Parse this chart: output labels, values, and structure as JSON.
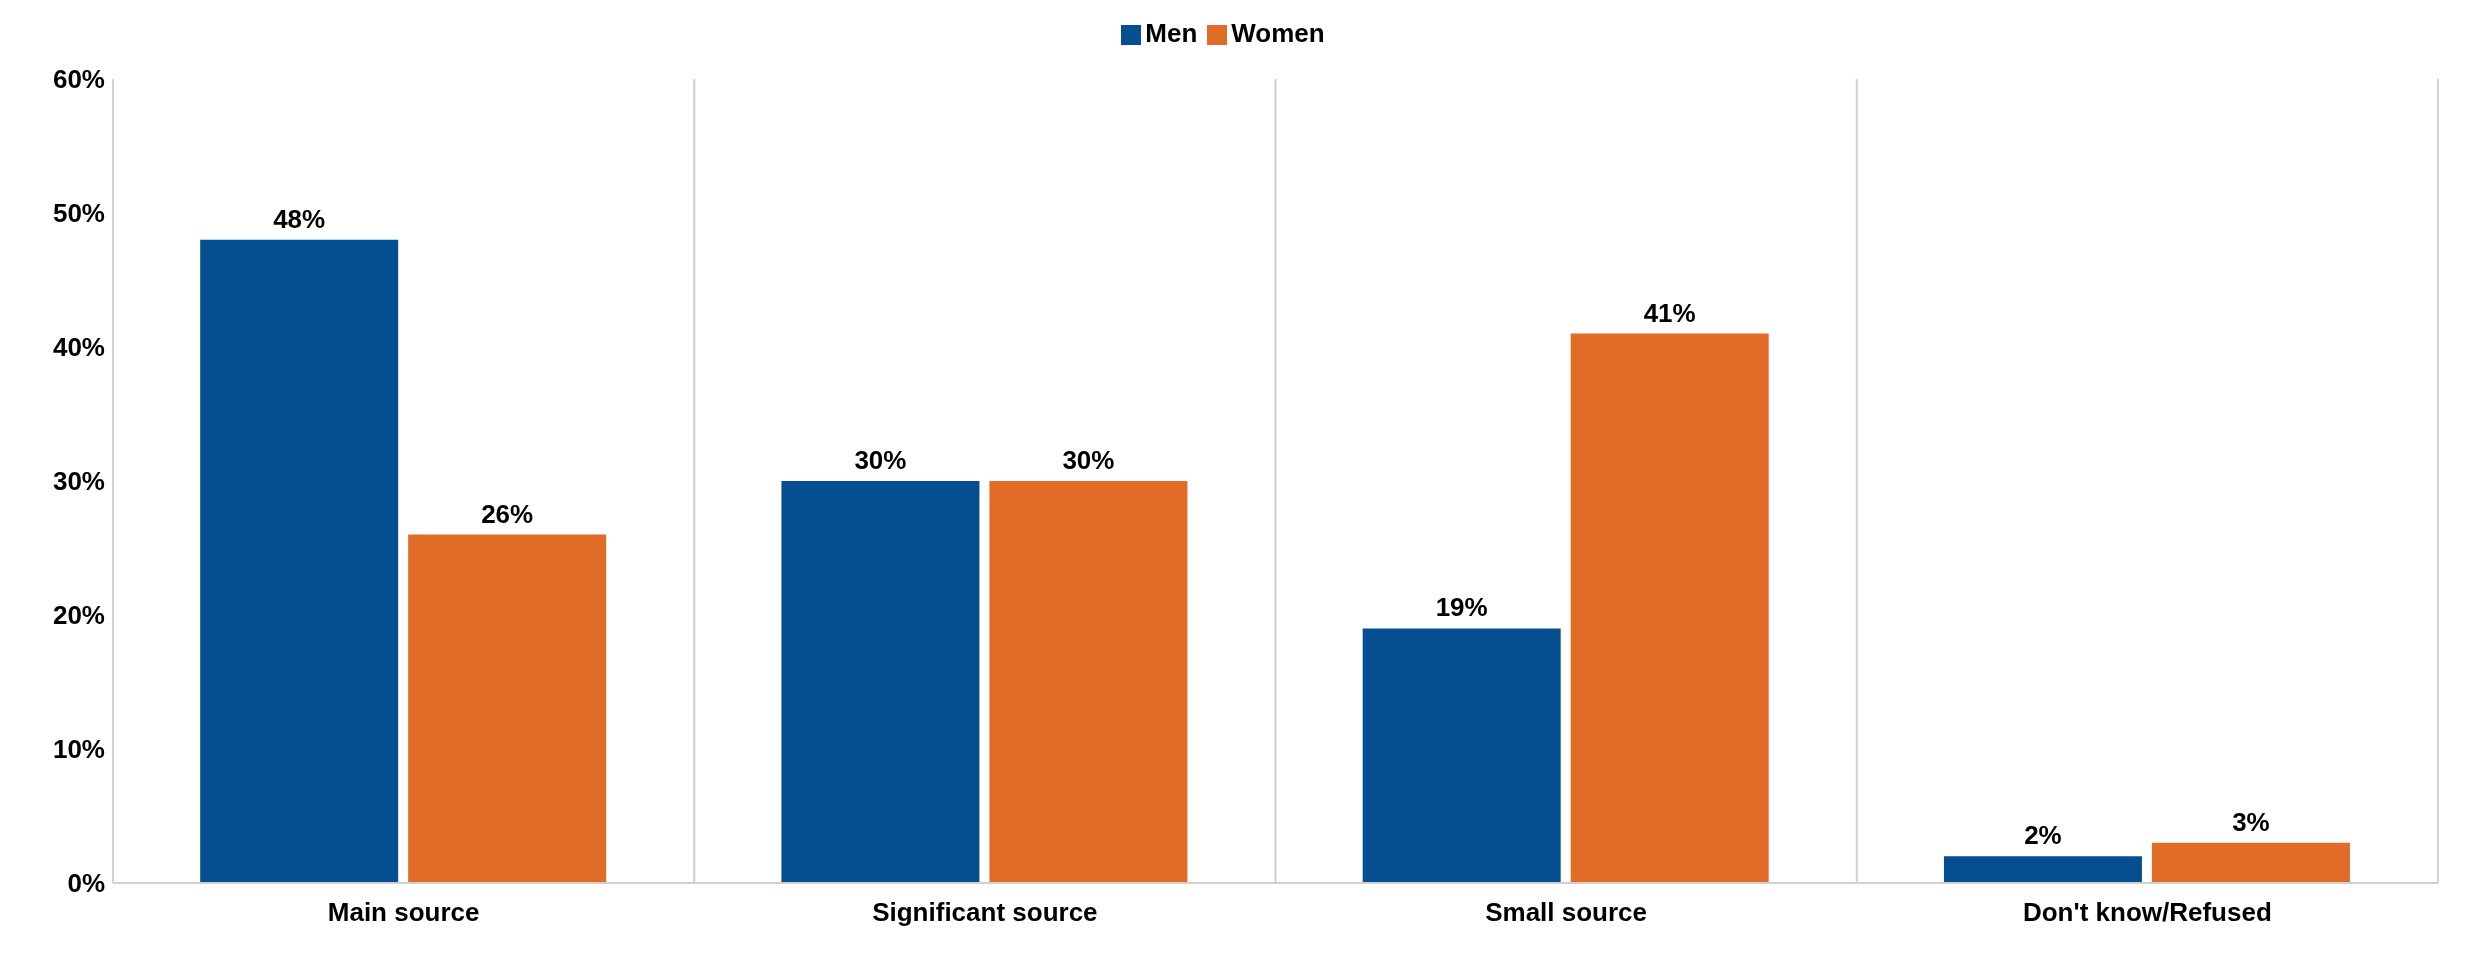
{
  "chart_data": {
    "type": "bar",
    "categories": [
      "Main source",
      "Significant source",
      "Small source",
      "Don't know/Refused"
    ],
    "series": [
      {
        "name": "Men",
        "color": "#054f91",
        "values": [
          48,
          30,
          19,
          2
        ],
        "value_labels": [
          "48%",
          "30%",
          "19%",
          "2%"
        ]
      },
      {
        "name": "Women",
        "color": "#e06c27",
        "values": [
          26,
          30,
          41,
          3
        ],
        "value_labels": [
          "26%",
          "30%",
          "41%",
          "3%"
        ]
      }
    ],
    "ylim": [
      0,
      60
    ],
    "yticks": [
      {
        "value": 0,
        "label": "0%"
      },
      {
        "value": 10,
        "label": "10%"
      },
      {
        "value": 20,
        "label": "20%"
      },
      {
        "value": 30,
        "label": "30%"
      },
      {
        "value": 40,
        "label": "40%"
      },
      {
        "value": 50,
        "label": "50%"
      },
      {
        "value": 60,
        "label": "60%"
      }
    ],
    "grid": "x",
    "legend": "top"
  }
}
